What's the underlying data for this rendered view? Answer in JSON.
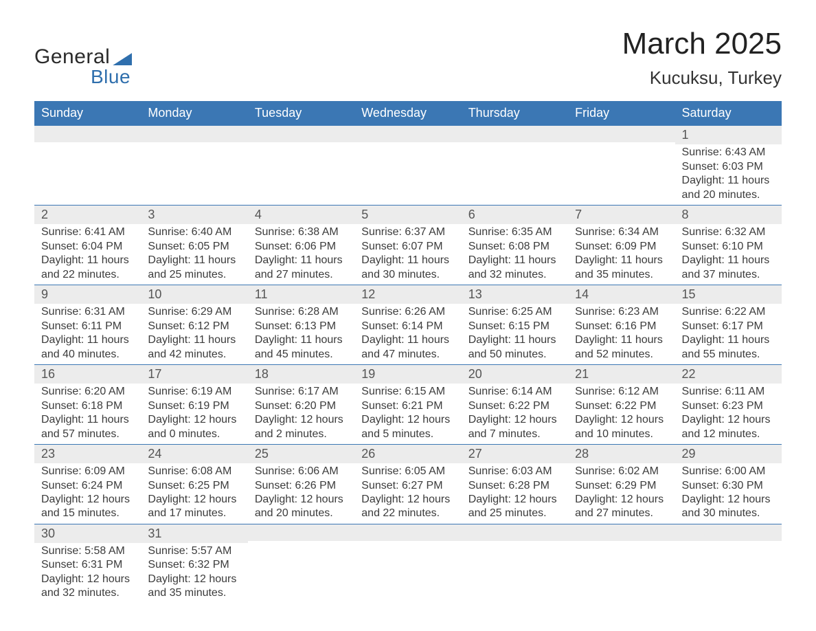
{
  "brand": {
    "general": "General",
    "blue": "Blue"
  },
  "title": {
    "month": "March 2025",
    "location": "Kucuksu, Turkey"
  },
  "colors": {
    "header_bg": "#3b77b4",
    "header_text": "#ffffff",
    "row_divider": "#3b77b4",
    "daynum_bg": "#ececec",
    "body_text": "#3b3b3b",
    "background": "#ffffff"
  },
  "typography": {
    "month_fontsize": 44,
    "location_fontsize": 26,
    "weekday_fontsize": 18,
    "daynum_fontsize": 18,
    "cell_fontsize": 16
  },
  "weekdays": [
    "Sunday",
    "Monday",
    "Tuesday",
    "Wednesday",
    "Thursday",
    "Friday",
    "Saturday"
  ],
  "weeks": [
    [
      {
        "day": "",
        "sunrise": "",
        "sunset": "",
        "daylight1": "",
        "daylight2": ""
      },
      {
        "day": "",
        "sunrise": "",
        "sunset": "",
        "daylight1": "",
        "daylight2": ""
      },
      {
        "day": "",
        "sunrise": "",
        "sunset": "",
        "daylight1": "",
        "daylight2": ""
      },
      {
        "day": "",
        "sunrise": "",
        "sunset": "",
        "daylight1": "",
        "daylight2": ""
      },
      {
        "day": "",
        "sunrise": "",
        "sunset": "",
        "daylight1": "",
        "daylight2": ""
      },
      {
        "day": "",
        "sunrise": "",
        "sunset": "",
        "daylight1": "",
        "daylight2": ""
      },
      {
        "day": "1",
        "sunrise": "Sunrise: 6:43 AM",
        "sunset": "Sunset: 6:03 PM",
        "daylight1": "Daylight: 11 hours",
        "daylight2": "and 20 minutes."
      }
    ],
    [
      {
        "day": "2",
        "sunrise": "Sunrise: 6:41 AM",
        "sunset": "Sunset: 6:04 PM",
        "daylight1": "Daylight: 11 hours",
        "daylight2": "and 22 minutes."
      },
      {
        "day": "3",
        "sunrise": "Sunrise: 6:40 AM",
        "sunset": "Sunset: 6:05 PM",
        "daylight1": "Daylight: 11 hours",
        "daylight2": "and 25 minutes."
      },
      {
        "day": "4",
        "sunrise": "Sunrise: 6:38 AM",
        "sunset": "Sunset: 6:06 PM",
        "daylight1": "Daylight: 11 hours",
        "daylight2": "and 27 minutes."
      },
      {
        "day": "5",
        "sunrise": "Sunrise: 6:37 AM",
        "sunset": "Sunset: 6:07 PM",
        "daylight1": "Daylight: 11 hours",
        "daylight2": "and 30 minutes."
      },
      {
        "day": "6",
        "sunrise": "Sunrise: 6:35 AM",
        "sunset": "Sunset: 6:08 PM",
        "daylight1": "Daylight: 11 hours",
        "daylight2": "and 32 minutes."
      },
      {
        "day": "7",
        "sunrise": "Sunrise: 6:34 AM",
        "sunset": "Sunset: 6:09 PM",
        "daylight1": "Daylight: 11 hours",
        "daylight2": "and 35 minutes."
      },
      {
        "day": "8",
        "sunrise": "Sunrise: 6:32 AM",
        "sunset": "Sunset: 6:10 PM",
        "daylight1": "Daylight: 11 hours",
        "daylight2": "and 37 minutes."
      }
    ],
    [
      {
        "day": "9",
        "sunrise": "Sunrise: 6:31 AM",
        "sunset": "Sunset: 6:11 PM",
        "daylight1": "Daylight: 11 hours",
        "daylight2": "and 40 minutes."
      },
      {
        "day": "10",
        "sunrise": "Sunrise: 6:29 AM",
        "sunset": "Sunset: 6:12 PM",
        "daylight1": "Daylight: 11 hours",
        "daylight2": "and 42 minutes."
      },
      {
        "day": "11",
        "sunrise": "Sunrise: 6:28 AM",
        "sunset": "Sunset: 6:13 PM",
        "daylight1": "Daylight: 11 hours",
        "daylight2": "and 45 minutes."
      },
      {
        "day": "12",
        "sunrise": "Sunrise: 6:26 AM",
        "sunset": "Sunset: 6:14 PM",
        "daylight1": "Daylight: 11 hours",
        "daylight2": "and 47 minutes."
      },
      {
        "day": "13",
        "sunrise": "Sunrise: 6:25 AM",
        "sunset": "Sunset: 6:15 PM",
        "daylight1": "Daylight: 11 hours",
        "daylight2": "and 50 minutes."
      },
      {
        "day": "14",
        "sunrise": "Sunrise: 6:23 AM",
        "sunset": "Sunset: 6:16 PM",
        "daylight1": "Daylight: 11 hours",
        "daylight2": "and 52 minutes."
      },
      {
        "day": "15",
        "sunrise": "Sunrise: 6:22 AM",
        "sunset": "Sunset: 6:17 PM",
        "daylight1": "Daylight: 11 hours",
        "daylight2": "and 55 minutes."
      }
    ],
    [
      {
        "day": "16",
        "sunrise": "Sunrise: 6:20 AM",
        "sunset": "Sunset: 6:18 PM",
        "daylight1": "Daylight: 11 hours",
        "daylight2": "and 57 minutes."
      },
      {
        "day": "17",
        "sunrise": "Sunrise: 6:19 AM",
        "sunset": "Sunset: 6:19 PM",
        "daylight1": "Daylight: 12 hours",
        "daylight2": "and 0 minutes."
      },
      {
        "day": "18",
        "sunrise": "Sunrise: 6:17 AM",
        "sunset": "Sunset: 6:20 PM",
        "daylight1": "Daylight: 12 hours",
        "daylight2": "and 2 minutes."
      },
      {
        "day": "19",
        "sunrise": "Sunrise: 6:15 AM",
        "sunset": "Sunset: 6:21 PM",
        "daylight1": "Daylight: 12 hours",
        "daylight2": "and 5 minutes."
      },
      {
        "day": "20",
        "sunrise": "Sunrise: 6:14 AM",
        "sunset": "Sunset: 6:22 PM",
        "daylight1": "Daylight: 12 hours",
        "daylight2": "and 7 minutes."
      },
      {
        "day": "21",
        "sunrise": "Sunrise: 6:12 AM",
        "sunset": "Sunset: 6:22 PM",
        "daylight1": "Daylight: 12 hours",
        "daylight2": "and 10 minutes."
      },
      {
        "day": "22",
        "sunrise": "Sunrise: 6:11 AM",
        "sunset": "Sunset: 6:23 PM",
        "daylight1": "Daylight: 12 hours",
        "daylight2": "and 12 minutes."
      }
    ],
    [
      {
        "day": "23",
        "sunrise": "Sunrise: 6:09 AM",
        "sunset": "Sunset: 6:24 PM",
        "daylight1": "Daylight: 12 hours",
        "daylight2": "and 15 minutes."
      },
      {
        "day": "24",
        "sunrise": "Sunrise: 6:08 AM",
        "sunset": "Sunset: 6:25 PM",
        "daylight1": "Daylight: 12 hours",
        "daylight2": "and 17 minutes."
      },
      {
        "day": "25",
        "sunrise": "Sunrise: 6:06 AM",
        "sunset": "Sunset: 6:26 PM",
        "daylight1": "Daylight: 12 hours",
        "daylight2": "and 20 minutes."
      },
      {
        "day": "26",
        "sunrise": "Sunrise: 6:05 AM",
        "sunset": "Sunset: 6:27 PM",
        "daylight1": "Daylight: 12 hours",
        "daylight2": "and 22 minutes."
      },
      {
        "day": "27",
        "sunrise": "Sunrise: 6:03 AM",
        "sunset": "Sunset: 6:28 PM",
        "daylight1": "Daylight: 12 hours",
        "daylight2": "and 25 minutes."
      },
      {
        "day": "28",
        "sunrise": "Sunrise: 6:02 AM",
        "sunset": "Sunset: 6:29 PM",
        "daylight1": "Daylight: 12 hours",
        "daylight2": "and 27 minutes."
      },
      {
        "day": "29",
        "sunrise": "Sunrise: 6:00 AM",
        "sunset": "Sunset: 6:30 PM",
        "daylight1": "Daylight: 12 hours",
        "daylight2": "and 30 minutes."
      }
    ],
    [
      {
        "day": "30",
        "sunrise": "Sunrise: 5:58 AM",
        "sunset": "Sunset: 6:31 PM",
        "daylight1": "Daylight: 12 hours",
        "daylight2": "and 32 minutes."
      },
      {
        "day": "31",
        "sunrise": "Sunrise: 5:57 AM",
        "sunset": "Sunset: 6:32 PM",
        "daylight1": "Daylight: 12 hours",
        "daylight2": "and 35 minutes."
      },
      {
        "day": "",
        "sunrise": "",
        "sunset": "",
        "daylight1": "",
        "daylight2": ""
      },
      {
        "day": "",
        "sunrise": "",
        "sunset": "",
        "daylight1": "",
        "daylight2": ""
      },
      {
        "day": "",
        "sunrise": "",
        "sunset": "",
        "daylight1": "",
        "daylight2": ""
      },
      {
        "day": "",
        "sunrise": "",
        "sunset": "",
        "daylight1": "",
        "daylight2": ""
      },
      {
        "day": "",
        "sunrise": "",
        "sunset": "",
        "daylight1": "",
        "daylight2": ""
      }
    ]
  ]
}
